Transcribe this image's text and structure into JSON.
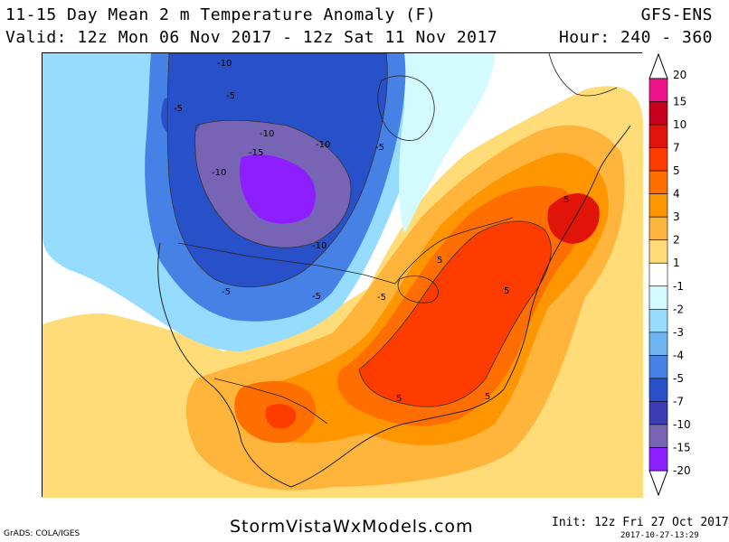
{
  "header": {
    "title": "11-15 Day Mean 2 m Temperature Anomaly (F)",
    "model": "GFS-ENS",
    "valid": "Valid: 12z Mon 06 Nov 2017 - 12z Sat 11 Nov 2017",
    "hours": "Hour: 240 - 360"
  },
  "footer": {
    "grads_credit": "GrADS: COLA/IGES",
    "site": "StormVistaWxModels.com",
    "init": "Init: 12z Fri 27 Oct 2017",
    "timestamp": "2017-10-27-13:29"
  },
  "colorbar": {
    "labels": [
      "20",
      "15",
      "10",
      "7",
      "5",
      "4",
      "3",
      "2",
      "1",
      "-1",
      "-2",
      "-3",
      "-4",
      "-5",
      "-7",
      "-10",
      "-15",
      "-20"
    ],
    "colors": [
      "#f0148c",
      "#c8001e",
      "#e1140a",
      "#ff3c00",
      "#ff6e00",
      "#ff9600",
      "#ffb43c",
      "#ffdc78",
      "#ffffff",
      "#d2faff",
      "#96dcff",
      "#6eb4f0",
      "#4682e6",
      "#2850c8",
      "#3c3cb4",
      "#7864b4",
      "#8c1eff"
    ]
  },
  "map": {
    "contour_labels": [
      "-10",
      "-5",
      "-5",
      "-10",
      "-15",
      "-10",
      "-10",
      "-5",
      "-10",
      "-5",
      "-5",
      "-5",
      "5",
      "5",
      "5",
      "5",
      "5"
    ],
    "colors": {
      "ocean": "#ffffff",
      "strong_cold": "#8c1eff",
      "deep_cold": "#7864b4",
      "cold": "#2850c8",
      "cool": "#4682e6",
      "mild_cool": "#96dcff",
      "very_light_cool": "#d2faff",
      "warm_light": "#ffdc78",
      "warm": "#ffb43c",
      "warmer": "#ff9600",
      "hot": "#ff6e00",
      "hotter": "#ff3c00",
      "hottest": "#e1140a"
    }
  }
}
